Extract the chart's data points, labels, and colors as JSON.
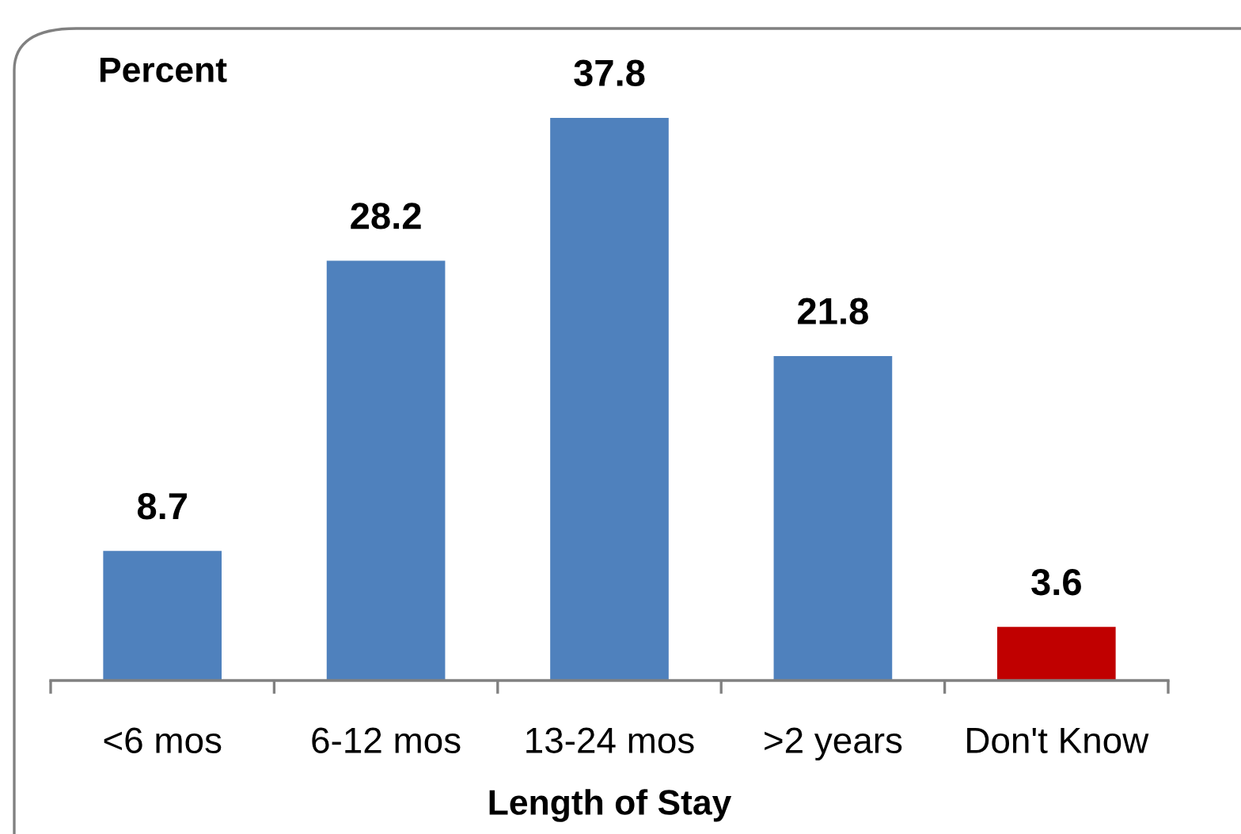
{
  "chart_data": {
    "type": "bar",
    "ylabel": "Percent",
    "xlabel": "Length of Stay",
    "categories": [
      "<6 mos",
      "6-12 mos",
      "13-24 mos",
      ">2 years",
      "Don't Know"
    ],
    "values": [
      8.7,
      28.2,
      37.8,
      21.8,
      3.6
    ],
    "colors": [
      "#4f81bd",
      "#4f81bd",
      "#4f81bd",
      "#4f81bd",
      "#c00000"
    ],
    "data_labels": true
  }
}
